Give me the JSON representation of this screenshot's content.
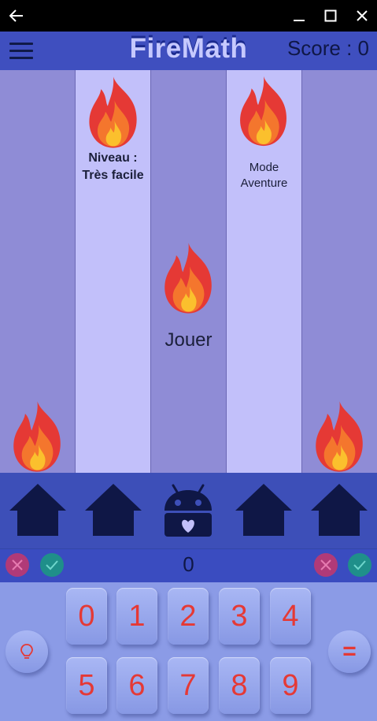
{
  "app": {
    "title": "FireMath",
    "score_label": "Score : 0"
  },
  "columns": {
    "level_label": "Niveau : Très facile",
    "adventure_label": "Mode Aventure",
    "play_label": "Jouer"
  },
  "answer": {
    "value": "0"
  },
  "keypad": {
    "keys": [
      "0",
      "1",
      "2",
      "3",
      "4",
      "5",
      "6",
      "7",
      "8",
      "9"
    ],
    "equals": "="
  },
  "colors": {
    "titlebar": "#000000",
    "appbar": "#3f4fbf",
    "column_dark": "#8f8cd6",
    "column_light": "#c2c0fa",
    "keypad_bg": "#8b9be6",
    "digit": "#e53935",
    "home_icon": "#0f1746",
    "cancel_button": "#c2185b",
    "confirm_button": "#26a69a"
  },
  "icons": {
    "back": "arrow-left-icon",
    "minimize": "minimize-icon",
    "maximize": "maximize-icon",
    "close": "close-icon",
    "menu": "hamburger-menu-icon",
    "flame": "flame-icon",
    "home": "home-icon",
    "android": "android-heart-icon",
    "hint": "lightbulb-icon"
  }
}
